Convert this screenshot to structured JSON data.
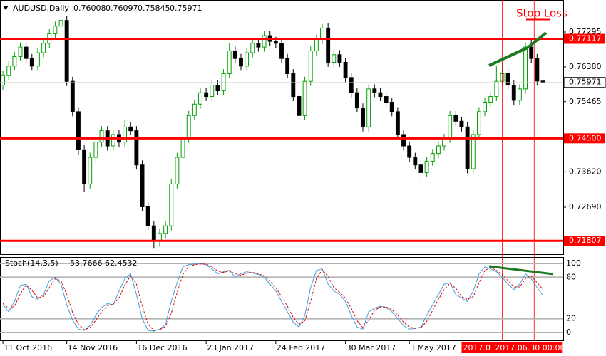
{
  "chart_data": [
    {
      "type": "candlestick",
      "title": "AUDUSD,Daily",
      "open": [
        0.759,
        0.7615,
        0.764,
        0.7665,
        0.769,
        0.766,
        0.764,
        0.7675,
        0.77,
        0.7725,
        0.7745,
        0.776,
        0.76,
        0.752,
        0.742,
        0.733,
        0.74,
        0.744,
        0.747,
        0.743,
        0.746,
        0.744,
        0.748,
        0.747,
        0.738,
        0.727,
        0.722,
        0.718,
        0.72,
        0.722,
        0.733,
        0.74,
        0.745,
        0.751,
        0.754,
        0.757,
        0.756,
        0.759,
        0.7575,
        0.762,
        0.768,
        0.766,
        0.764,
        0.7675,
        0.77,
        0.769,
        0.772,
        0.7705,
        0.77,
        0.766,
        0.762,
        0.756,
        0.751,
        0.76,
        0.768,
        0.771,
        0.774,
        0.765,
        0.767,
        0.765,
        0.761,
        0.757,
        0.753,
        0.748,
        0.758,
        0.757,
        0.756,
        0.7545,
        0.752,
        0.746,
        0.743,
        0.74,
        0.738,
        0.736,
        0.739,
        0.741,
        0.743,
        0.745,
        0.751,
        0.7495,
        0.748,
        0.737,
        0.746,
        0.752,
        0.7545,
        0.756,
        0.76,
        0.762,
        0.759,
        0.755,
        0.758,
        0.769,
        0.766,
        0.76008
      ],
      "high": [
        0.7627,
        0.7652,
        0.7677,
        0.7702,
        0.7702,
        0.7672,
        0.7687,
        0.7712,
        0.7737,
        0.7757,
        0.7775,
        0.7772,
        0.7612,
        0.7532,
        0.7432,
        0.7412,
        0.7452,
        0.7482,
        0.7482,
        0.7472,
        0.7472,
        0.75,
        0.7492,
        0.7482,
        0.7392,
        0.7282,
        0.7232,
        0.7212,
        0.7232,
        0.7342,
        0.7412,
        0.7462,
        0.7522,
        0.7552,
        0.7582,
        0.7582,
        0.7602,
        0.7602,
        0.7632,
        0.77,
        0.7692,
        0.7672,
        0.7687,
        0.7712,
        0.7712,
        0.7732,
        0.7732,
        0.7717,
        0.7712,
        0.7672,
        0.7632,
        0.7572,
        0.7612,
        0.7692,
        0.7722,
        0.775,
        0.7752,
        0.7682,
        0.7682,
        0.7662,
        0.7622,
        0.7582,
        0.7542,
        0.7592,
        0.7592,
        0.7582,
        0.7572,
        0.7557,
        0.7532,
        0.7472,
        0.7442,
        0.7412,
        0.7392,
        0.7402,
        0.7422,
        0.7442,
        0.7462,
        0.7522,
        0.7522,
        0.7507,
        0.7492,
        0.7472,
        0.7532,
        0.7557,
        0.7572,
        0.764,
        0.765,
        0.7632,
        0.7602,
        0.7592,
        0.7702,
        0.771,
        0.7672,
        0.76097
      ],
      "low": [
        0.7578,
        0.7603,
        0.7628,
        0.7653,
        0.7648,
        0.7628,
        0.7628,
        0.7663,
        0.7688,
        0.7713,
        0.7733,
        0.7588,
        0.7508,
        0.7408,
        0.731,
        0.7318,
        0.7388,
        0.7428,
        0.7418,
        0.7418,
        0.7428,
        0.7428,
        0.7458,
        0.7368,
        0.7258,
        0.7208,
        0.716,
        0.7165,
        0.7188,
        0.7208,
        0.7318,
        0.7388,
        0.7438,
        0.7498,
        0.7528,
        0.7548,
        0.7548,
        0.7563,
        0.7563,
        0.7608,
        0.7648,
        0.7628,
        0.7628,
        0.7663,
        0.7678,
        0.7678,
        0.7693,
        0.7688,
        0.7648,
        0.7608,
        0.7548,
        0.7495,
        0.7498,
        0.7588,
        0.7668,
        0.7698,
        0.7638,
        0.7638,
        0.7638,
        0.7598,
        0.7558,
        0.7518,
        0.7468,
        0.7468,
        0.7558,
        0.7548,
        0.7533,
        0.7508,
        0.7448,
        0.7418,
        0.7388,
        0.7368,
        0.733,
        0.7348,
        0.7378,
        0.7398,
        0.7418,
        0.7438,
        0.7483,
        0.7468,
        0.7358,
        0.7358,
        0.7448,
        0.7508,
        0.7533,
        0.7548,
        0.7588,
        0.7578,
        0.7538,
        0.7538,
        0.7568,
        0.7648,
        0.7589,
        0.75845
      ],
      "close": [
        0.7615,
        0.764,
        0.7665,
        0.769,
        0.766,
        0.764,
        0.7675,
        0.77,
        0.7725,
        0.7745,
        0.776,
        0.76,
        0.752,
        0.742,
        0.733,
        0.74,
        0.744,
        0.747,
        0.743,
        0.746,
        0.744,
        0.748,
        0.747,
        0.738,
        0.727,
        0.722,
        0.718,
        0.72,
        0.722,
        0.733,
        0.74,
        0.745,
        0.751,
        0.754,
        0.757,
        0.756,
        0.759,
        0.7575,
        0.762,
        0.768,
        0.766,
        0.764,
        0.7675,
        0.77,
        0.769,
        0.772,
        0.7705,
        0.77,
        0.766,
        0.762,
        0.756,
        0.751,
        0.76,
        0.768,
        0.771,
        0.774,
        0.765,
        0.767,
        0.765,
        0.761,
        0.757,
        0.753,
        0.748,
        0.758,
        0.757,
        0.756,
        0.7545,
        0.752,
        0.746,
        0.743,
        0.74,
        0.738,
        0.736,
        0.739,
        0.741,
        0.743,
        0.745,
        0.751,
        0.7495,
        0.748,
        0.737,
        0.746,
        0.752,
        0.7545,
        0.756,
        0.76,
        0.762,
        0.759,
        0.755,
        0.758,
        0.769,
        0.766,
        0.76008,
        0.75971
      ],
      "up_color": "#00a000",
      "down_color": "#000000",
      "xlim": [
        -0.5,
        96.5
      ],
      "ylim": [
        0.71455,
        0.781
      ],
      "yticks": [
        0.77295,
        {
          "value": 0.7638,
          "label": "0.76380"
        },
        0.75465,
        {
          "value": 0.7362,
          "label": "0.73620"
        },
        {
          "value": 0.7269,
          "label": "0.72690"
        }
      ],
      "levels": [
        0.77117,
        {
          "value": 0.745,
          "label": "0.74500"
        },
        0.71807
      ],
      "level_color": "#ff0000",
      "xticks": [
        {
          "value": 0,
          "label": "11 Oct 2016"
        },
        {
          "value": 11,
          "label": "14 Nov 2016"
        },
        {
          "value": 23,
          "label": "16 Dec 2016"
        },
        {
          "value": 35,
          "label": "23 Jan 2017"
        },
        {
          "value": 47,
          "label": "24 Feb 2017"
        },
        {
          "value": 59,
          "label": "30 Mar 2017"
        },
        {
          "value": 70,
          "label": "3 May 2017"
        }
      ],
      "vlines": [
        {
          "value": 86,
          "label": "2017.0"
        },
        {
          "value": 91.5,
          "label": "2017.06.30 00:00"
        }
      ],
      "annotation": "Stop Loss"
    },
    {
      "type": "line",
      "title": "Stoch(14,3,5)",
      "xlim": [
        -0.5,
        96.5
      ],
      "ylim": [
        -11.3,
        108.2
      ],
      "yticks": [
        100,
        80,
        20,
        0
      ],
      "series": [
        {
          "color": "#3fa0dc",
          "values": [
            40,
            30,
            45,
            68,
            70,
            52,
            48,
            55,
            75,
            80,
            70,
            40,
            18,
            5,
            3,
            10,
            25,
            36,
            42,
            40,
            60,
            78,
            85,
            55,
            20,
            3,
            2,
            5,
            12,
            45,
            72,
            95,
            98,
            99,
            100,
            98,
            92,
            85,
            88,
            90,
            80,
            85,
            88,
            86,
            84,
            80,
            70,
            60,
            45,
            30,
            15,
            8,
            25,
            65,
            90,
            92,
            70,
            60,
            55,
            45,
            25,
            8,
            5,
            30,
            35,
            38,
            36,
            30,
            20,
            10,
            5,
            6,
            8,
            25,
            40,
            55,
            70,
            72,
            55,
            50,
            45,
            60,
            85,
            95,
            92,
            88,
            80,
            70,
            62,
            70,
            85,
            78,
            65,
            53.7666
          ]
        },
        {
          "color": "#e00000",
          "values": [
            42,
            35,
            38,
            56,
            69,
            61,
            50,
            52,
            65,
            78,
            75,
            55,
            29,
            12,
            4,
            7,
            18,
            30,
            39,
            41,
            50,
            69,
            82,
            70,
            38,
            12,
            3,
            4,
            9,
            28,
            58,
            84,
            96,
            98,
            99,
            99,
            95,
            89,
            87,
            89,
            85,
            83,
            86,
            87,
            85,
            82,
            75,
            65,
            52,
            38,
            22,
            12,
            17,
            45,
            78,
            91,
            81,
            65,
            58,
            50,
            35,
            17,
            7,
            18,
            32,
            37,
            37,
            33,
            25,
            15,
            8,
            6,
            7,
            16,
            32,
            48,
            62,
            71,
            64,
            52,
            48,
            52,
            72,
            90,
            94,
            90,
            84,
            75,
            66,
            66,
            78,
            82,
            72,
            62.4532
          ]
        }
      ]
    }
  ]
}
